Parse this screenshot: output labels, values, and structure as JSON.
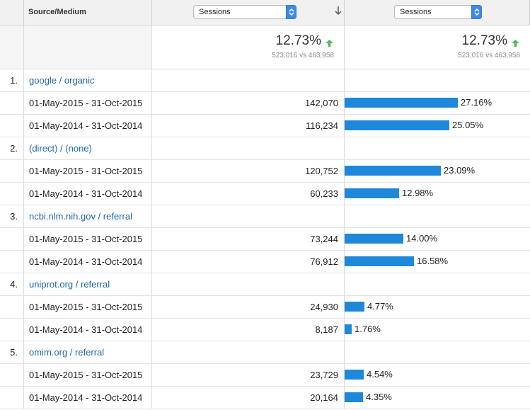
{
  "header": {
    "source_medium": "Source/Medium",
    "metric1": "Sessions",
    "metric2": "Sessions"
  },
  "totals": {
    "change1": "12.73%",
    "compare1": "523,016 vs 463,958",
    "change2": "12.73%",
    "compare2": "523,016 vs 463,958"
  },
  "colors": {
    "bar": "#1e88d9",
    "link": "#1f66a8",
    "up": "#5cb85c"
  },
  "groups": [
    {
      "index": "1.",
      "source": "google / organic",
      "rows": [
        {
          "range": "01-May-2015 - 31-Oct-2015",
          "sessions": "142,070",
          "share": "27.16%",
          "fraction": 0.2716
        },
        {
          "range": "01-May-2014 - 31-Oct-2014",
          "sessions": "116,234",
          "share": "25.05%",
          "fraction": 0.2505
        }
      ]
    },
    {
      "index": "2.",
      "source": "(direct) / (none)",
      "rows": [
        {
          "range": "01-May-2015 - 31-Oct-2015",
          "sessions": "120,752",
          "share": "23.09%",
          "fraction": 0.2309
        },
        {
          "range": "01-May-2014 - 31-Oct-2014",
          "sessions": "60,233",
          "share": "12.98%",
          "fraction": 0.1298
        }
      ]
    },
    {
      "index": "3.",
      "source": "ncbi.nlm.nih.gov / referral",
      "rows": [
        {
          "range": "01-May-2015 - 31-Oct-2015",
          "sessions": "73,244",
          "share": "14.00%",
          "fraction": 0.14
        },
        {
          "range": "01-May-2014 - 31-Oct-2014",
          "sessions": "76,912",
          "share": "16.58%",
          "fraction": 0.1658
        }
      ]
    },
    {
      "index": "4.",
      "source": "uniprot.org / referral",
      "rows": [
        {
          "range": "01-May-2015 - 31-Oct-2015",
          "sessions": "24,930",
          "share": "4.77%",
          "fraction": 0.0477
        },
        {
          "range": "01-May-2014 - 31-Oct-2014",
          "sessions": "8,187",
          "share": "1.76%",
          "fraction": 0.0176
        }
      ]
    },
    {
      "index": "5.",
      "source": "omim.org / referral",
      "rows": [
        {
          "range": "01-May-2015 - 31-Oct-2015",
          "sessions": "23,729",
          "share": "4.54%",
          "fraction": 0.0454
        },
        {
          "range": "01-May-2014 - 31-Oct-2014",
          "sessions": "20,164",
          "share": "4.35%",
          "fraction": 0.0435
        }
      ]
    }
  ]
}
